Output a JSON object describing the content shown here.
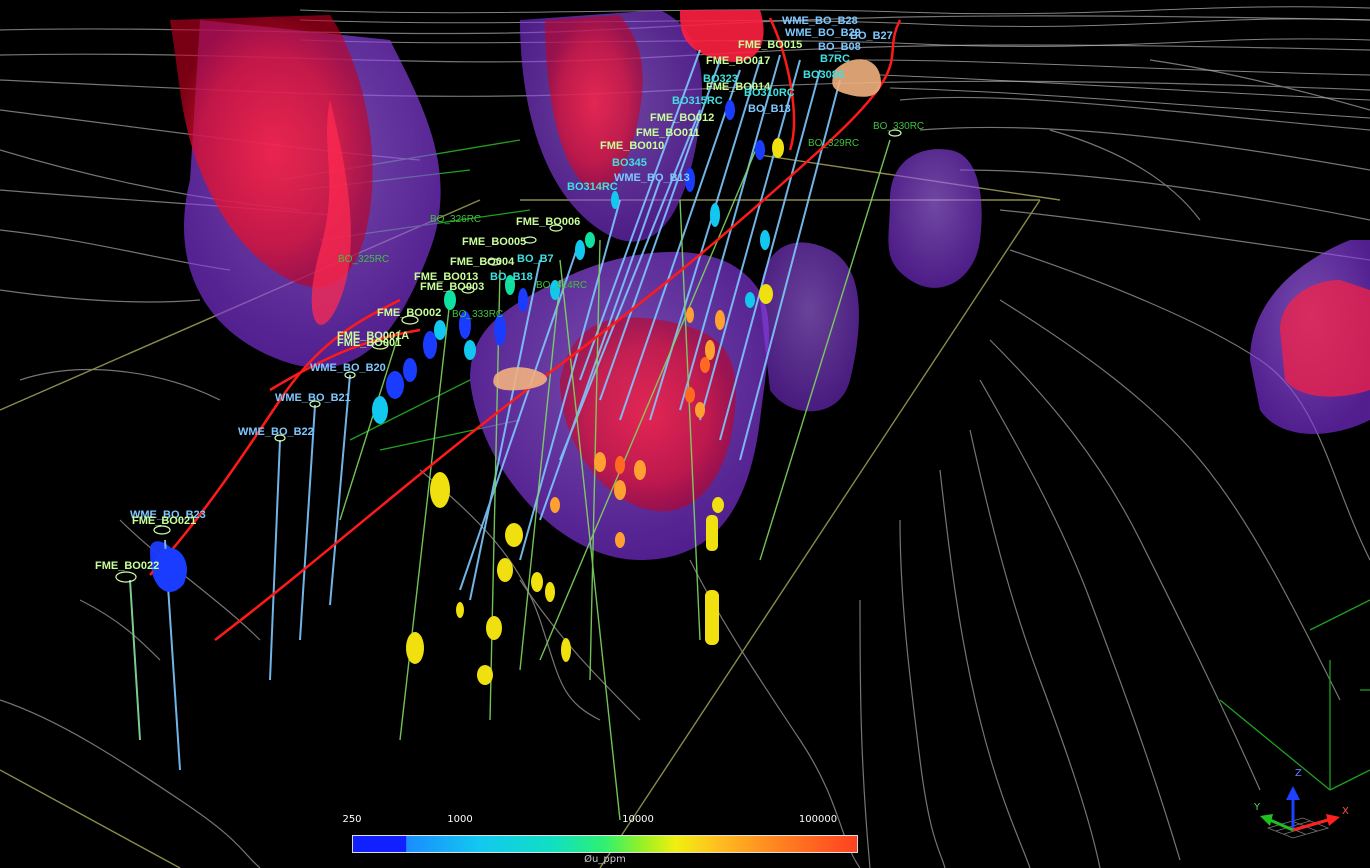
{
  "legend": {
    "ticks": [
      "250",
      "1000",
      "10000",
      "100000"
    ],
    "title": "Øu_ppm",
    "colors": [
      "#1020ff",
      "#1a8cff",
      "#12c8f0",
      "#10e0c0",
      "#20f090",
      "#40f040",
      "#a0f020",
      "#f0f010",
      "#ffc020",
      "#ff9020",
      "#ff6a20",
      "#ff4020"
    ]
  },
  "axes": {
    "x": "X",
    "y": "Y",
    "z": "Z"
  },
  "hole_labels": {
    "l01": "WME_BO_B28",
    "l02": "WME_BO_B29",
    "l03": "BO_B27",
    "l04": "FME_BO015",
    "l05": "BO_B08",
    "l06": "FME_BO017",
    "l07": "B7RC",
    "l08": "BO323",
    "l09": "BO3086",
    "l10": "FME_BO014",
    "l11": "BO310RC",
    "l12": "BO315RC",
    "l13": "BO_B13",
    "l14": "FME_BO012",
    "l15": "BO_330RC",
    "l16": "FME_BO011",
    "l17": "BO_329RC",
    "l18": "FME_BO010",
    "l19": "BO345",
    "l20": "WME_BO_B13",
    "l21": "BO314RC",
    "l22": "FME_BO006",
    "l23": "BO_326RC",
    "l24": "FME_BO005",
    "l25": "BO_B7",
    "l26": "BO_325RC",
    "l27": "FME_BO004",
    "l28": "FME_BO013",
    "l29": "BO_B18",
    "l30": "FME_BO003",
    "l31": "BO_324RC",
    "l32": "FME_BO002",
    "l33": "BO_333RC",
    "l34": "FME_BO001A",
    "l35": "FME_BO001",
    "l36": "WME_BO_B20",
    "l37": "WME_BO_B21",
    "l38": "WME_BO_B22",
    "l39": "WME_BO_B23",
    "l40": "FME_BO021",
    "l41": "FME_BO022"
  }
}
